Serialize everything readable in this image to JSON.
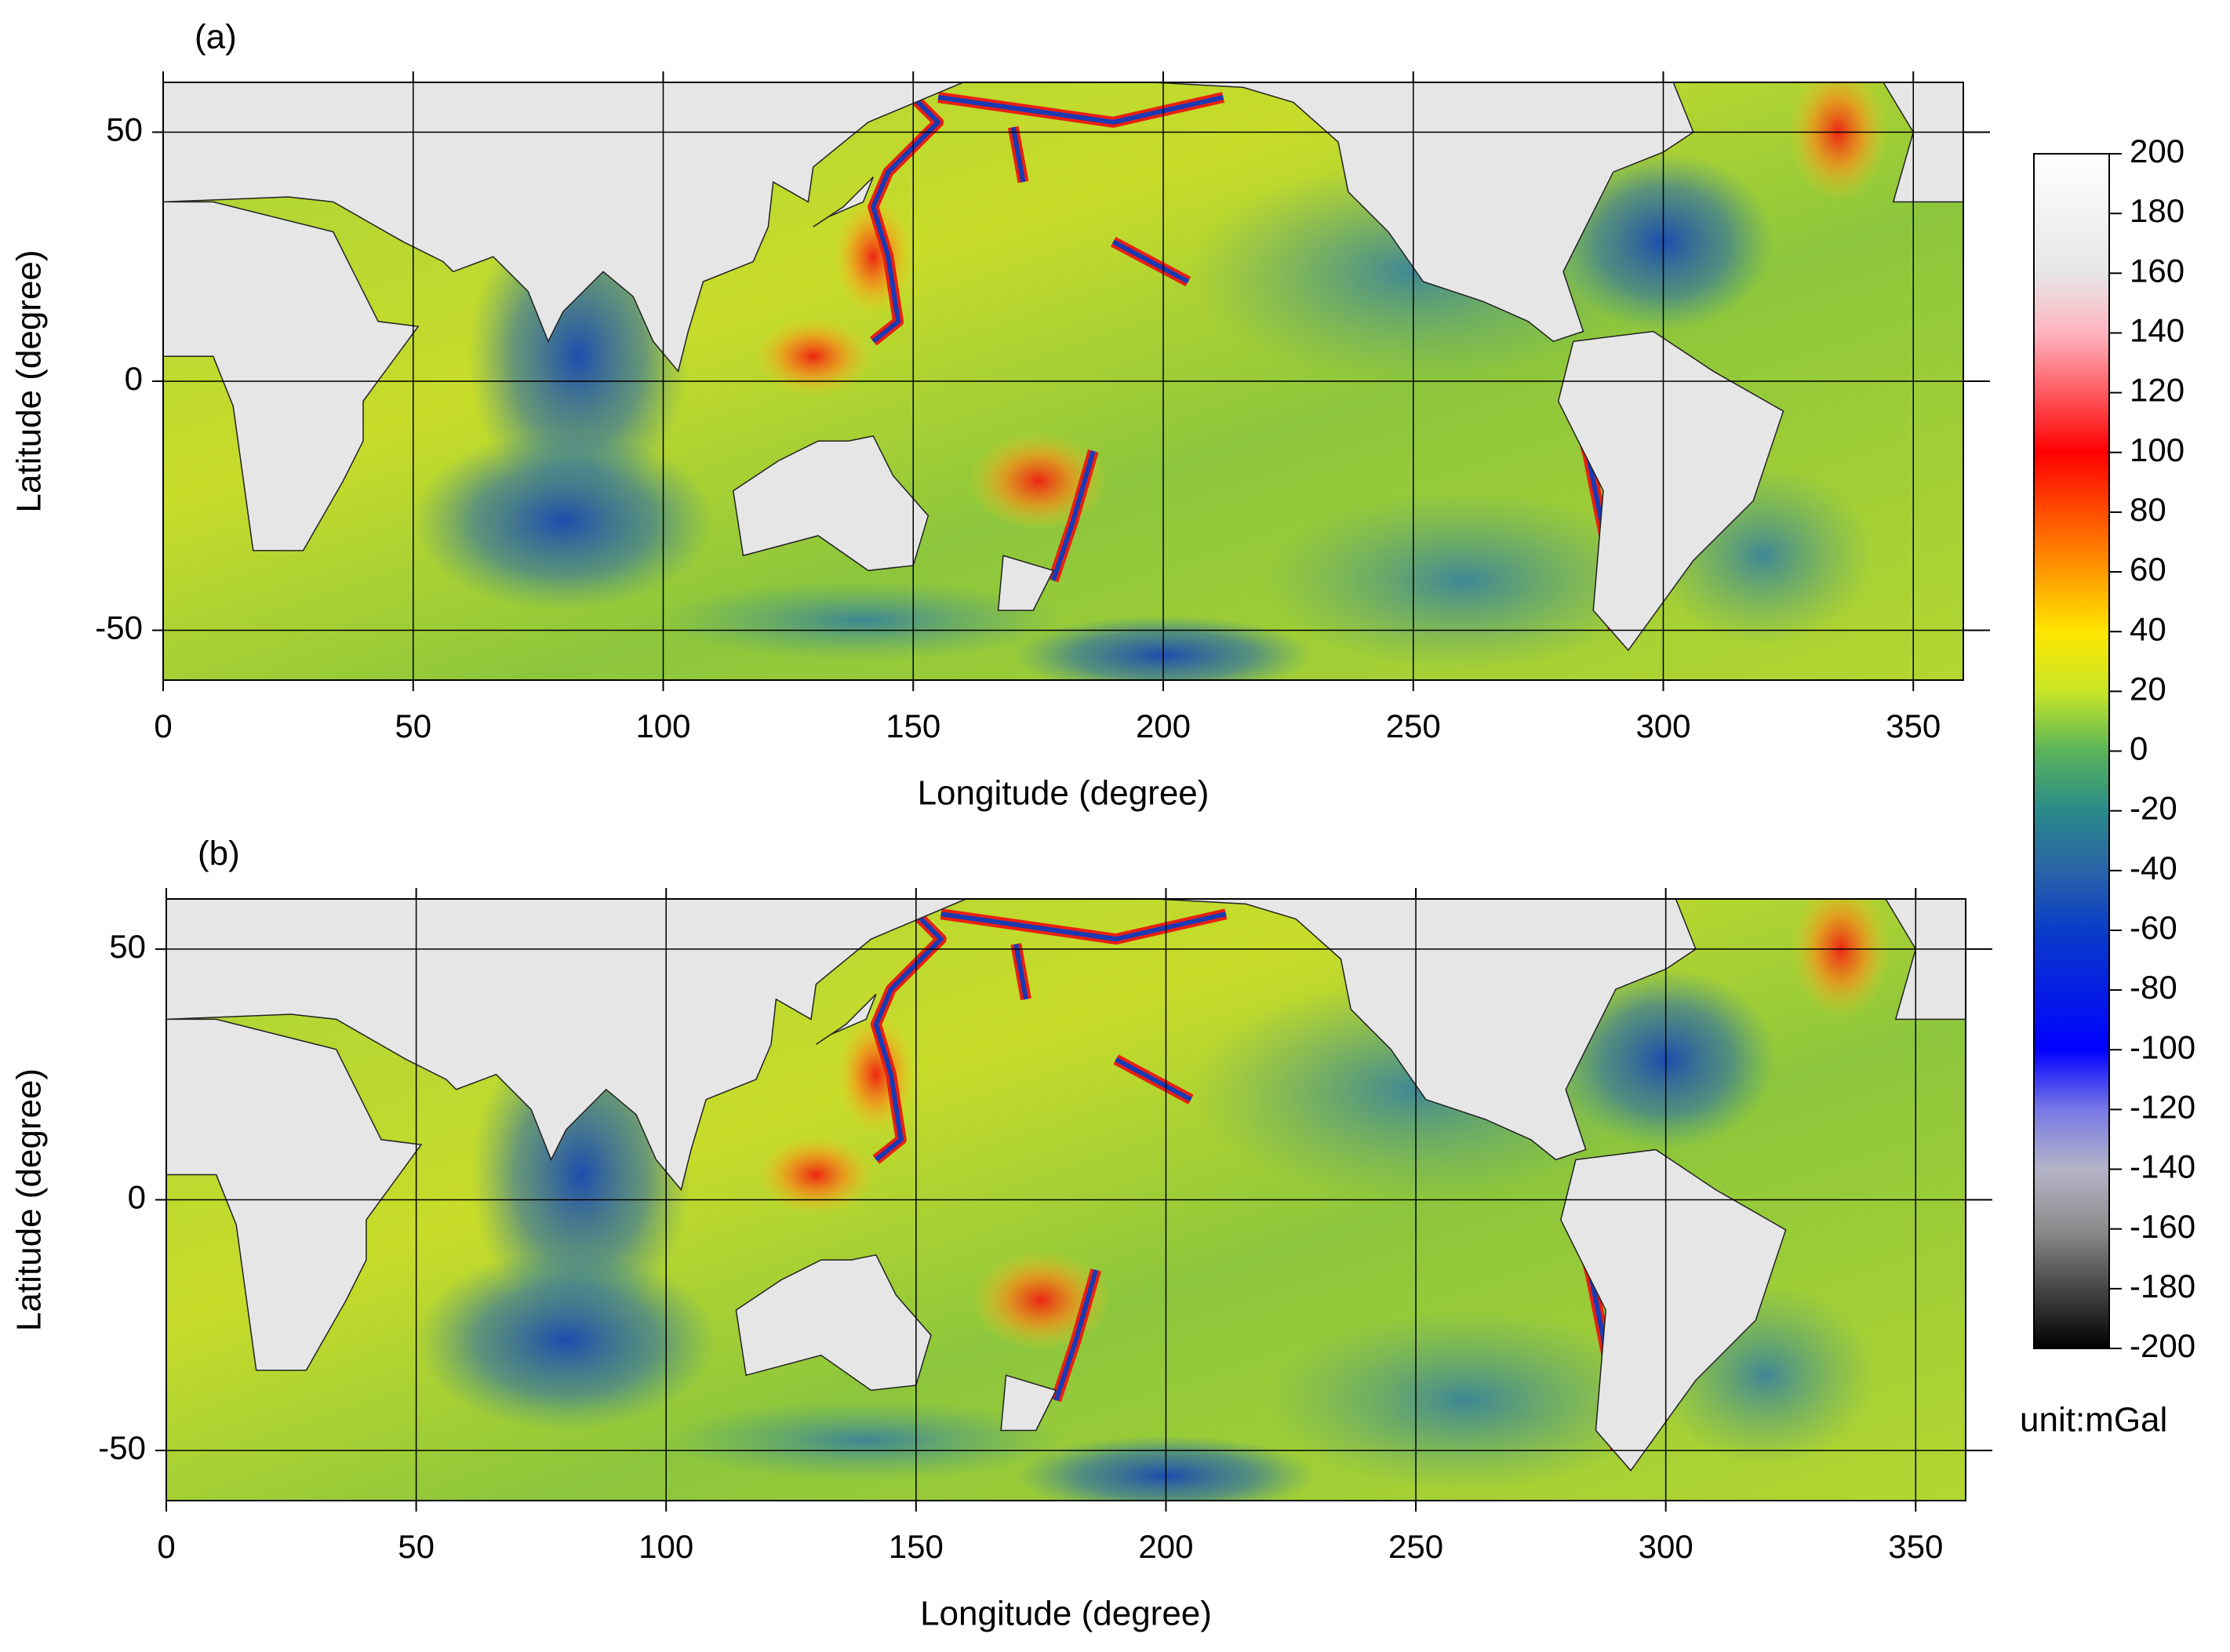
{
  "chart_data": [
    {
      "type": "map",
      "label": "(a)",
      "xlabel": "Longitude (degree)",
      "ylabel": "Latitude (degree)",
      "xlim": [
        0,
        360
      ],
      "ylim": [
        -60,
        60
      ],
      "xticks": [
        0,
        50,
        100,
        150,
        200,
        250,
        300,
        350
      ],
      "yticks": [
        -50,
        0,
        50
      ],
      "grid": true
    },
    {
      "type": "map",
      "label": "(b)",
      "xlabel": "Longitude (degree)",
      "ylabel": "Latitude (degree)",
      "xlim": [
        0,
        360
      ],
      "ylim": [
        -60,
        60
      ],
      "xticks": [
        0,
        50,
        100,
        150,
        200,
        250,
        300,
        350
      ],
      "yticks": [
        -50,
        0,
        50
      ],
      "grid": true
    }
  ],
  "colorbar": {
    "lim": [
      -200,
      200
    ],
    "ticks": [
      200,
      180,
      160,
      140,
      120,
      100,
      80,
      60,
      40,
      20,
      0,
      -20,
      -40,
      -60,
      -80,
      -100,
      -120,
      -140,
      -160,
      -180,
      -200
    ],
    "unit": "unit:mGal"
  }
}
